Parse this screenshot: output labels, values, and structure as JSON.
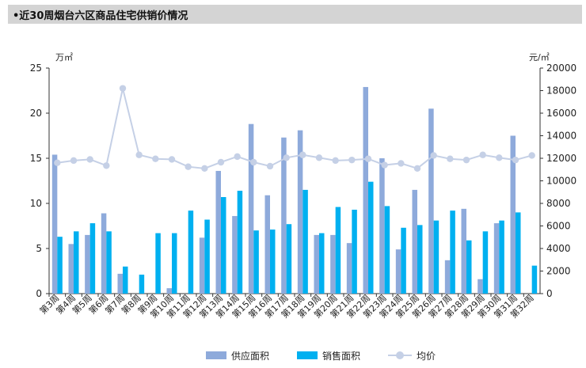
{
  "title": "•近30周烟台六区商品住宅供销价情况",
  "colors": {
    "supply": "#8eaadb",
    "sales": "#00b0f0",
    "price": "#c5d0e6",
    "axis": "#333333",
    "grid_text": "#222222"
  },
  "chart_data": {
    "type": "bar",
    "title": "",
    "xlabel": "",
    "ylabel": "万㎡",
    "y2label": "元/㎡",
    "ylim": [
      0,
      25
    ],
    "y2lim": [
      0,
      20000
    ],
    "yticks": [
      0,
      5,
      10,
      15,
      20,
      25
    ],
    "y2ticks": [
      0,
      2000,
      4000,
      6000,
      8000,
      10000,
      12000,
      14000,
      16000,
      18000,
      20000
    ],
    "grid": false,
    "legend_position": "bottom",
    "categories": [
      "第3周",
      "第4周",
      "第5周",
      "第6周",
      "第7周",
      "第8周",
      "第9周",
      "第10周",
      "第11周",
      "第12周",
      "第13周",
      "第14周",
      "第15周",
      "第16周",
      "第17周",
      "第18周",
      "第19周",
      "第20周",
      "第21周",
      "第22周",
      "第23周",
      "第24周",
      "第25周",
      "第26周",
      "第27周",
      "第28周",
      "第29周",
      "第30周",
      "第31周",
      "第32周"
    ],
    "series": [
      {
        "name": "供应面积",
        "type": "bar",
        "axis": "left",
        "values": [
          15.4,
          5.5,
          6.5,
          8.9,
          2.2,
          0,
          0,
          0.6,
          0,
          6.2,
          13.6,
          8.6,
          18.8,
          10.9,
          17.3,
          18.1,
          6.5,
          6.5,
          5.6,
          22.9,
          15.0,
          4.9,
          11.5,
          20.5,
          3.7,
          9.4,
          1.6,
          7.8,
          17.5,
          0
        ]
      },
      {
        "name": "销售面积",
        "type": "bar",
        "axis": "right",
        "values": [
          6.3,
          6.9,
          7.8,
          6.9,
          3.0,
          2.1,
          6.7,
          6.7,
          9.2,
          8.2,
          10.7,
          11.4,
          7.0,
          7.1,
          7.7,
          11.5,
          6.7,
          9.6,
          9.3,
          12.4,
          9.7,
          7.3,
          7.6,
          8.1,
          9.2,
          5.9,
          6.9,
          8.1,
          9.0,
          3.1
        ]
      },
      {
        "name": "均价",
        "type": "line",
        "axis": "right",
        "values": [
          11600,
          11800,
          11900,
          11350,
          18200,
          12300,
          11950,
          11900,
          11250,
          11100,
          11650,
          12150,
          11650,
          11300,
          12050,
          12300,
          12050,
          11800,
          11850,
          11950,
          11400,
          11550,
          11100,
          12250,
          11950,
          11850,
          12300,
          12050,
          11850,
          12250
        ]
      }
    ]
  }
}
